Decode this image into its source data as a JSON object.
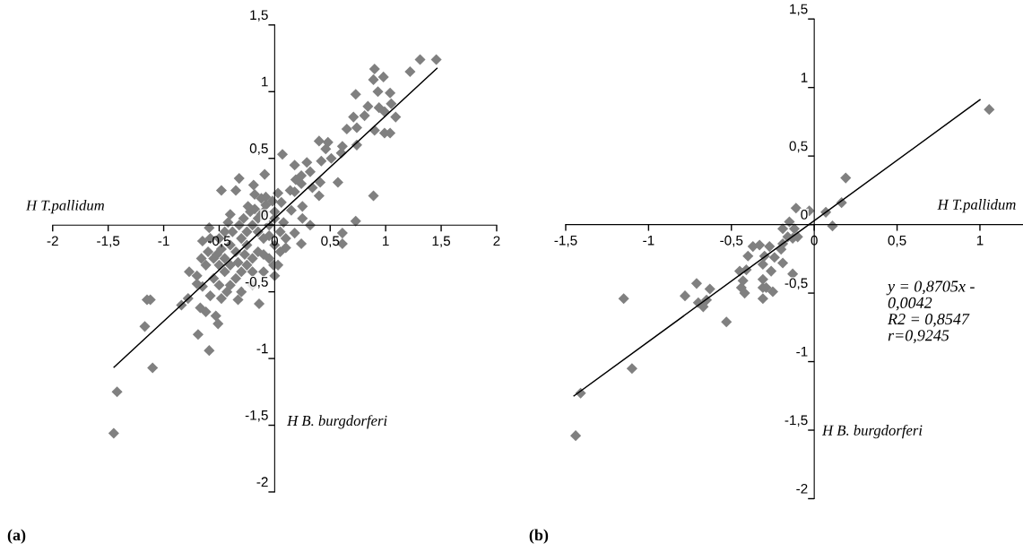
{
  "chart_data": [
    {
      "type": "scatter",
      "title": "(a)",
      "xlabel": "H T.pallidum",
      "ylabel": "H B. burgdorferi",
      "xlim": [
        -2,
        2
      ],
      "ylim": [
        -2,
        1.5
      ],
      "xticks": [
        -2,
        {
          "value": -1.5,
          "label": "-1,5"
        },
        -1,
        {
          "value": -0.5,
          "label": "-0,5"
        },
        0,
        {
          "value": 0.5,
          "label": "0,5"
        },
        1,
        {
          "value": 1.5,
          "label": "1,5"
        },
        2
      ],
      "yticks": [
        -2,
        {
          "value": -1.5,
          "label": "-1,5"
        },
        -1,
        {
          "value": -0.5,
          "label": "-0,5"
        },
        0,
        {
          "value": 0.5,
          "label": "0,5"
        },
        1,
        {
          "value": 1.5,
          "label": "1,5"
        }
      ],
      "series": [
        {
          "type": "scatter",
          "marker": "diamond",
          "color": "#808080",
          "x": [
            1.456,
            1.31,
            1.22,
            0.9,
            0.98,
            0.89,
            0.73,
            0.93,
            1.04,
            1.05,
            0.94,
            0.84,
            0.81,
            0.99,
            1.09,
            0.71,
            0.9,
            0.99,
            1.04,
            0.74,
            0.65,
            0.61,
            0.74,
            0.4,
            0.48,
            0.46,
            0.51,
            0.42,
            0.6,
            0.29,
            0.18,
            0.07,
            0.57,
            0.89,
            0.73,
            0.61,
            0.61,
            0.24,
            0.32,
            0.25,
            0.4,
            0.41,
            0.34,
            0.32,
            0.24,
            0.19,
            0.24,
            0.18,
            0.14,
            0.25,
            0.15,
            0.06,
            0.03,
            -0.09,
            -0.32,
            -0.35,
            -0.48,
            -0.19,
            -0.18,
            -0.08,
            -0.4,
            -0.24,
            -0.59,
            -0.65,
            0.18,
            0.1,
            -0.01,
            0.0,
            -0.14,
            -0.33,
            -0.43,
            -0.48,
            -0.58,
            -0.65,
            -0.77,
            -0.7,
            -0.84,
            -0.78,
            -0.67,
            -0.62,
            -0.53,
            -0.51,
            -0.69,
            -0.59,
            -1.15,
            -1.12,
            -1.17,
            -1.1,
            -1.42,
            -1.45,
            -0.5,
            -0.45,
            -0.4,
            -0.35,
            -0.3,
            -0.25,
            -0.2,
            -0.15,
            -0.1,
            -0.05,
            0.0,
            0.05,
            -0.1,
            -0.15,
            -0.2,
            -0.25,
            -0.3,
            -0.35,
            -0.4,
            -0.45,
            -0.5,
            -0.55,
            -0.6,
            -0.5,
            -0.4,
            -0.3,
            -0.2,
            -0.1,
            -0.05,
            0.0,
            0.05,
            0.1,
            0.08,
            -0.08,
            -0.12,
            -0.18,
            -0.22,
            -0.28,
            -0.32,
            -0.38,
            -0.42,
            -0.48,
            -0.52,
            -0.58,
            -0.62,
            -0.66,
            -0.7,
            -0.25,
            -0.15,
            -0.05,
            0.0,
            -0.02,
            -0.12,
            -0.27,
            -0.33,
            -0.45,
            -0.55,
            -0.2,
            -0.1,
            0.03
          ],
          "values": [
            1.24,
            1.24,
            1.15,
            1.17,
            1.11,
            1.09,
            0.98,
            1.0,
            0.99,
            0.91,
            0.88,
            0.89,
            0.82,
            0.85,
            0.81,
            0.81,
            0.71,
            0.69,
            0.69,
            0.73,
            0.72,
            0.59,
            0.6,
            0.63,
            0.62,
            0.57,
            0.5,
            0.48,
            0.54,
            0.47,
            0.45,
            0.53,
            0.32,
            0.22,
            0.03,
            -0.06,
            -0.14,
            -0.14,
            0.0,
            0.05,
            0.22,
            0.32,
            0.28,
            0.4,
            0.37,
            0.34,
            0.31,
            0.25,
            0.26,
            0.14,
            0.11,
            0.17,
            0.24,
            0.38,
            0.35,
            0.26,
            0.26,
            0.3,
            0.23,
            0.21,
            0.08,
            0.14,
            -0.02,
            -0.12,
            -0.06,
            -0.17,
            -0.3,
            -0.38,
            -0.59,
            -0.56,
            -0.5,
            -0.55,
            -0.53,
            -0.46,
            -0.35,
            -0.44,
            -0.6,
            -0.55,
            -0.62,
            -0.65,
            -0.68,
            -0.74,
            -0.82,
            -0.94,
            -0.56,
            -0.56,
            -0.76,
            -1.07,
            -1.25,
            -1.56,
            -0.1,
            -0.05,
            -0.15,
            -0.2,
            -0.1,
            -0.05,
            0.0,
            0.05,
            0.1,
            0.0,
            0.05,
            -0.05,
            -0.1,
            -0.2,
            -0.25,
            -0.3,
            -0.35,
            -0.4,
            -0.3,
            -0.35,
            -0.3,
            -0.25,
            -0.2,
            -0.45,
            -0.45,
            -0.5,
            -0.45,
            -0.35,
            -0.25,
            -0.15,
            -0.2,
            -0.1,
            0.02,
            0.15,
            0.08,
            0.12,
            0.1,
            0.05,
            0.0,
            -0.05,
            0.02,
            -0.18,
            -0.22,
            -0.1,
            -0.3,
            -0.25,
            -0.38,
            -0.15,
            -0.05,
            -0.08,
            0.1,
            0.18,
            0.2,
            -0.22,
            -0.28,
            -0.25,
            -0.4,
            -0.35,
            -0.22,
            -0.3
          ]
        },
        {
          "type": "line",
          "color": "#000000",
          "x": [
            -1.447,
            1.462
          ],
          "values": [
            -1.065,
            1.175
          ]
        }
      ]
    },
    {
      "type": "scatter",
      "title": "(b)",
      "xlabel": "H T.pallidum",
      "ylabel": "H B. burgdorferi",
      "annotations": [
        "y = 0,8705x -\n0,0042\nR2 = 0,8547\nr=0,9245"
      ],
      "xlim": [
        -1.5,
        1.26
      ],
      "ylim": [
        -2,
        1.5
      ],
      "xticks": [
        {
          "value": -1.5,
          "label": "-1,5"
        },
        -1,
        {
          "value": -0.5,
          "label": "-0,5"
        },
        0,
        {
          "value": 0.5,
          "label": "0,5"
        },
        1
      ],
      "yticks": [
        -2,
        {
          "value": -1.5,
          "label": "-1,5"
        },
        -1,
        {
          "value": -0.5,
          "label": "-0,5"
        },
        0,
        {
          "value": 0.5,
          "label": "0,5"
        },
        1,
        {
          "value": 1.5,
          "label": "1,5"
        }
      ],
      "series": [
        {
          "type": "scatter",
          "marker": "diamond",
          "color": "#808080",
          "x": [
            1.056,
            0.19,
            0.165,
            0.07,
            -0.03,
            -0.11,
            0.11,
            -0.15,
            -0.19,
            -0.12,
            -0.1,
            -0.13,
            -0.16,
            -0.19,
            -0.2,
            -0.27,
            -0.33,
            -0.37,
            -0.3,
            -0.24,
            -0.19,
            -0.31,
            -0.26,
            -0.4,
            -0.41,
            -0.45,
            -0.43,
            -0.44,
            -0.42,
            -0.31,
            -0.31,
            -0.29,
            -0.25,
            -0.31,
            -0.13,
            -0.63,
            -0.71,
            -0.78,
            -0.7,
            -0.65,
            -0.67,
            -0.53,
            -1.15,
            -1.1,
            -1.41,
            -1.44
          ],
          "values": [
            0.84,
            0.34,
            0.16,
            0.09,
            0.1,
            0.12,
            -0.01,
            0.02,
            -0.03,
            -0.03,
            -0.09,
            -0.1,
            -0.09,
            -0.14,
            -0.18,
            -0.16,
            -0.15,
            -0.16,
            -0.23,
            -0.24,
            -0.28,
            -0.29,
            -0.34,
            -0.23,
            -0.33,
            -0.34,
            -0.41,
            -0.46,
            -0.5,
            -0.4,
            -0.46,
            -0.46,
            -0.49,
            -0.54,
            -0.36,
            -0.47,
            -0.43,
            -0.52,
            -0.57,
            -0.55,
            -0.6,
            -0.71,
            -0.54,
            -1.05,
            -1.23,
            -1.54
          ]
        },
        {
          "type": "line",
          "color": "#000000",
          "x": [
            -1.45,
            1.0
          ],
          "values": [
            -1.25,
            0.91
          ]
        }
      ]
    }
  ]
}
